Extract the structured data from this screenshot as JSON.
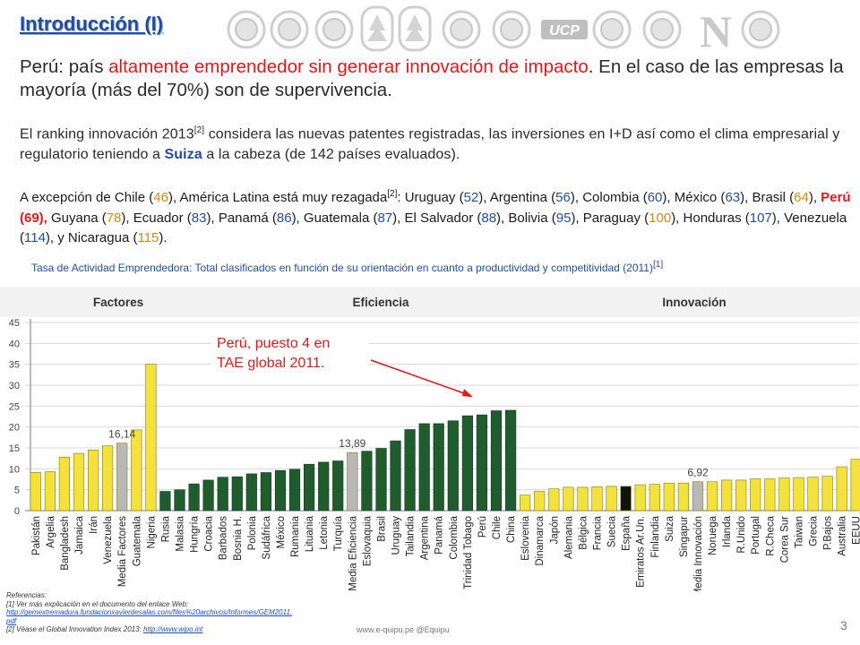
{
  "title": "Introducción (I)",
  "intro": {
    "part1": "Perú: país ",
    "highlight": "altamente emprendedor sin generar innovación de impacto",
    "part2": ". En el caso de las empresas la mayoría (más del 70%) son de supervivencia."
  },
  "ranking_text": {
    "part1": "El ranking innovación 2013",
    "ref": "[2]",
    "part2": " considera las nuevas patentes registradas, las inversiones en I+D así como el clima empresarial y regulatorio teniendo a ",
    "highlight": "Suiza",
    "part3": " a la cabeza (de 142 países evaluados)."
  },
  "latam_text": {
    "intro": "A excepción de Chile (",
    "chile": "46",
    "mid": "), América Latina está muy rezagada",
    "ref": "[2]",
    "colon": ": ",
    "countries": [
      {
        "name": "Uruguay (",
        "rank": "52",
        "close": "), ",
        "color": "ry"
      },
      {
        "name": "Argentina (",
        "rank": "56",
        "close": "), ",
        "color": "ry"
      },
      {
        "name": "Colombia (",
        "rank": "60",
        "close": "), ",
        "color": "ry"
      },
      {
        "name": "México (",
        "rank": "63",
        "close": "), ",
        "color": "ry"
      },
      {
        "name": "Brasil (",
        "rank": "64",
        "close": "), ",
        "color": "yl"
      },
      {
        "name": "Perú (69), ",
        "rank": "",
        "close": "",
        "color": "rd"
      },
      {
        "name": "Guyana (",
        "rank": "78",
        "close": "), ",
        "color": "yl"
      },
      {
        "name": "Ecuador (",
        "rank": "83",
        "close": "), ",
        "color": "ry"
      },
      {
        "name": "Panamá (",
        "rank": "86",
        "close": "), ",
        "color": "ry"
      },
      {
        "name": "Guatemala (",
        "rank": "87",
        "close": "), ",
        "color": "ry"
      },
      {
        "name": "El Salvador (",
        "rank": "88",
        "close": "), ",
        "color": "ry"
      },
      {
        "name": "Bolivia (",
        "rank": "95",
        "close": "), ",
        "color": "ry"
      },
      {
        "name": "Paraguay (",
        "rank": "100",
        "close": "), ",
        "color": "yl"
      },
      {
        "name": "Honduras (",
        "rank": "107",
        "close": "), ",
        "color": "ry"
      },
      {
        "name": "Venezuela (",
        "rank": "114",
        "close": "), y ",
        "color": "ry"
      },
      {
        "name": "Nicaragua (",
        "rank": "115",
        "close": ").",
        "color": "yl"
      }
    ]
  },
  "chart_subtitle": {
    "text": "Tasa de Actividad Emprendedora: Total clasificados en función de su orientación en cuanto a productividad y competitividad (2011)",
    "ref": "[1]"
  },
  "chart_data": {
    "type": "bar",
    "groups": [
      "Factores",
      "Eficiencia",
      "Innovación"
    ],
    "ylim": [
      0,
      45
    ],
    "yticks": [
      0,
      5,
      10,
      15,
      20,
      25,
      30,
      35,
      40,
      45
    ],
    "categories": [
      "Pakistán",
      "Argelia",
      "Bangladesh",
      "Jamaica",
      "Irán",
      "Venezuela",
      "Media Factores",
      "Guatemala",
      "Nigeria",
      "Rusia",
      "Malasia",
      "Hungría",
      "Croacia",
      "Barbados",
      "Bosnia H.",
      "Polonia",
      "Sudáfrica",
      "México",
      "Rumania",
      "Lituania",
      "Letonia",
      "Turquía",
      "Media Eficiencia",
      "Eslovaquia",
      "Brasil",
      "Uruguay",
      "Tailandia",
      "Argentina",
      "Panamá",
      "Colombia",
      "Trinidad Tobago",
      "Perú",
      "Chile",
      "China",
      "Eslovenia",
      "Dinamarca",
      "Japón",
      "Alemania",
      "Bélgica",
      "Francia",
      "Suecia",
      "España",
      "Emiratos Ar.Un.",
      "Finlandia",
      "Suiza",
      "Singapur",
      "Media Innovación",
      "Noruega",
      "Irlanda",
      "R.Unido",
      "Portugal",
      "R.Checa",
      "Corea Sur",
      "Taiwan",
      "Grecia",
      "P.Bajos",
      "Australia",
      "EEUU"
    ],
    "values": [
      9.1,
      9.3,
      12.8,
      13.7,
      14.5,
      15.5,
      16.14,
      19.3,
      35.0,
      4.6,
      5.0,
      6.4,
      7.3,
      8.0,
      8.1,
      8.8,
      9.1,
      9.6,
      9.9,
      11.1,
      11.6,
      11.9,
      13.89,
      14.2,
      14.9,
      16.7,
      19.4,
      20.8,
      20.8,
      21.5,
      22.7,
      22.9,
      23.9,
      24.0,
      3.7,
      4.6,
      5.2,
      5.6,
      5.6,
      5.7,
      5.8,
      5.8,
      6.2,
      6.3,
      6.6,
      6.6,
      6.92,
      6.9,
      7.3,
      7.3,
      7.6,
      7.6,
      7.8,
      7.9,
      8.0,
      8.2,
      10.5,
      12.3
    ],
    "bar_groups": [
      0,
      0,
      0,
      0,
      0,
      0,
      0,
      0,
      0,
      1,
      1,
      1,
      1,
      1,
      1,
      1,
      1,
      1,
      1,
      1,
      1,
      1,
      1,
      1,
      1,
      1,
      1,
      1,
      1,
      1,
      1,
      1,
      1,
      1,
      2,
      2,
      2,
      2,
      2,
      2,
      2,
      2,
      2,
      2,
      2,
      2,
      2,
      2,
      2,
      2,
      2,
      2,
      2,
      2,
      2,
      2,
      2,
      2
    ],
    "average_indices": [
      6,
      22,
      46
    ],
    "highlight_index": 41,
    "average_labels": [
      "16,14",
      "13,89",
      "6,92"
    ],
    "colors": {
      "factores": "#f3e13c",
      "eficiencia": "#1f5c2e",
      "innovacion": "#f3e13c",
      "average": "#b8b8b8",
      "highlight": "#111111",
      "border": "#8a7a10"
    },
    "annotation": "Perú, puesto 4 en TAE global 2011.",
    "grid": true
  },
  "references": {
    "heading": "Referencias:",
    "ref1": "[1] Ver más explicación en el documento del enlace Web:",
    "ref1_link": "http://gemextremadura.fundacionxavierdesalas.com/files%20archivos/Informes/GEM2011.pdf",
    "ref2": "[2] Véase el Global Innovation Index 2013: ",
    "ref2_link": "http://www.wipo.int"
  },
  "footer": "www.e-quipu.pe  @Equipu",
  "page_number": "3",
  "logos": [
    "seal-1-icon",
    "seal-2-icon",
    "seal-3-icon",
    "caduceus-icon",
    "tree-seal-icon",
    "seal-6-icon",
    "seal-7-icon",
    "ucp-logo-icon",
    "seal-9-icon",
    "seal-10-icon",
    "n-logo-icon",
    "eagle-icon"
  ]
}
